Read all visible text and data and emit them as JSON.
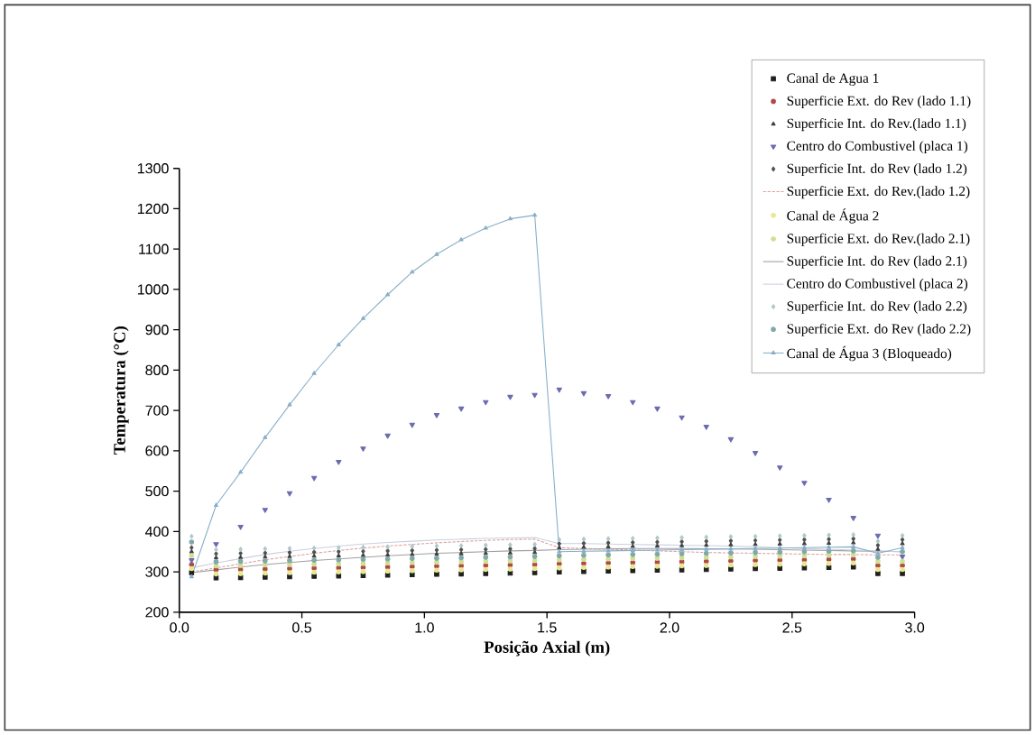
{
  "chart_data": {
    "type": "line",
    "xlabel": "Posição Axial (m)",
    "ylabel": "Temperatura (°C)",
    "xlim": [
      0,
      3.0
    ],
    "ylim": [
      200,
      1300
    ],
    "xticks": [
      {
        "value": 0,
        "label": "0.0"
      },
      {
        "value": 0.5,
        "label": "0.5"
      },
      {
        "value": 1.0,
        "label": "1.0"
      },
      {
        "value": 1.5,
        "label": "1.5"
      },
      {
        "value": 2.0,
        "label": "2.0"
      },
      {
        "value": 2.5,
        "label": "2.5"
      },
      {
        "value": 3.0,
        "label": "3.0"
      }
    ],
    "yticks": [
      200,
      300,
      400,
      500,
      600,
      700,
      800,
      900,
      1000,
      1100,
      1200,
      1300
    ],
    "legend": "top right",
    "x": [
      0.05,
      0.15,
      0.25,
      0.35,
      0.45,
      0.55,
      0.65,
      0.75,
      0.85,
      0.95,
      1.05,
      1.15,
      1.25,
      1.35,
      1.45,
      1.55,
      1.65,
      1.75,
      1.85,
      1.95,
      2.05,
      2.15,
      2.25,
      2.35,
      2.45,
      2.55,
      2.65,
      2.75,
      2.85,
      2.95
    ],
    "series": [
      {
        "name": "Canal de Agua 1",
        "type": "scatter",
        "color": "#202020",
        "marker": "square",
        "values": [
          298,
          285,
          286,
          287,
          288,
          289,
          290,
          291,
          292,
          293,
          294,
          295,
          296,
          297,
          298,
          300,
          301,
          302,
          303,
          304,
          305,
          306,
          307,
          308,
          309,
          310,
          311,
          312,
          296,
          296
        ]
      },
      {
        "name": "Superficie Ext. do Rev (lado 1.1)",
        "type": "scatter",
        "color": "#b04848",
        "marker": "circle",
        "values": [
          318,
          305,
          306,
          307,
          308,
          309,
          310,
          311,
          312,
          313,
          314,
          315,
          316,
          317,
          318,
          320,
          321,
          322,
          323,
          324,
          325,
          326,
          327,
          328,
          329,
          330,
          331,
          332,
          316,
          316
        ]
      },
      {
        "name": "Superficie Int. do Rev.(lado 1.1)",
        "type": "scatter",
        "color": "#404040",
        "marker": "triangle",
        "values": [
          350,
          335,
          336,
          337,
          338,
          339,
          340,
          341,
          342,
          343,
          344,
          345,
          346,
          347,
          348,
          360,
          361,
          362,
          363,
          364,
          365,
          366,
          367,
          368,
          369,
          370,
          371,
          372,
          356,
          370
        ]
      },
      {
        "name": "Centro do Combustivel (placa 1)",
        "type": "scatter",
        "color": "#6b6bb0",
        "marker": "triangle_down",
        "values": [
          329,
          369,
          412,
          454,
          495,
          533,
          573,
          606,
          638,
          665,
          689,
          705,
          721,
          734,
          739,
          752,
          743,
          736,
          721,
          705,
          683,
          660,
          629,
          595,
          559,
          521,
          479,
          434,
          390,
          338
        ]
      },
      {
        "name": "Superficie Int. do Rev (lado 1.2)",
        "type": "scatter",
        "color": "#505050",
        "marker": "diamond",
        "values": [
          360,
          345,
          346,
          347,
          348,
          349,
          350,
          351,
          352,
          353,
          354,
          355,
          356,
          357,
          358,
          370,
          371,
          372,
          373,
          374,
          375,
          376,
          377,
          378,
          379,
          380,
          381,
          382,
          366,
          380
        ]
      },
      {
        "name": "Superficie Ext. do Rev.(lado 1.2)",
        "color": "#e0a0a0",
        "marker": "none",
        "line_style": "dashed",
        "values": [
          300,
          310,
          320,
          330,
          338,
          346,
          353,
          359,
          364,
          368,
          372,
          375,
          378,
          380,
          381,
          360,
          358,
          356,
          354,
          352,
          350,
          348,
          347,
          346,
          345,
          344,
          343,
          343,
          342,
          342
        ]
      },
      {
        "name": "Canal de Água 2",
        "type": "scatter",
        "color": "#e8e890",
        "marker": "circle",
        "values": [
          308,
          295,
          296,
          297,
          298,
          299,
          300,
          301,
          302,
          303,
          304,
          305,
          306,
          307,
          308,
          310,
          311,
          312,
          313,
          314,
          315,
          316,
          317,
          318,
          319,
          320,
          321,
          322,
          306,
          306
        ]
      },
      {
        "name": "Superficie Ext. do Rev.(lado 2.1)",
        "type": "scatter",
        "color": "#d0e090",
        "marker": "circle",
        "values": [
          340,
          315,
          316,
          317,
          318,
          319,
          320,
          321,
          322,
          323,
          324,
          325,
          326,
          327,
          328,
          330,
          331,
          332,
          333,
          334,
          335,
          336,
          337,
          338,
          339,
          340,
          341,
          342,
          326,
          326
        ]
      },
      {
        "name": "Superficie Int. do Rev (lado 2.1)",
        "color": "#a0a0a0",
        "marker": "none",
        "line_style": "solid",
        "values": [
          298,
          305,
          312,
          318,
          323,
          328,
          332,
          336,
          340,
          343,
          346,
          348,
          350,
          352,
          353,
          355,
          356,
          357,
          358,
          358,
          358,
          357,
          357,
          356,
          355,
          354,
          353,
          352,
          351,
          350
        ]
      },
      {
        "name": "Centro do Combustivel (placa 2)",
        "color": "#c8d0e0",
        "marker": "none",
        "line_style": "solid",
        "values": [
          310,
          322,
          333,
          343,
          351,
          358,
          364,
          369,
          373,
          376,
          379,
          381,
          383,
          384,
          385,
          370,
          370,
          369,
          368,
          367,
          366,
          365,
          364,
          362,
          360,
          358,
          356,
          354,
          352,
          350
        ]
      },
      {
        "name": "Superficie Int. do Rev (lado 2.2)",
        "type": "scatter",
        "color": "#b0c8c8",
        "marker": "diamond",
        "values": [
          388,
          355,
          356,
          357,
          358,
          359,
          360,
          361,
          362,
          363,
          364,
          365,
          366,
          367,
          368,
          380,
          381,
          382,
          383,
          384,
          385,
          386,
          387,
          388,
          389,
          390,
          391,
          392,
          376,
          390
        ]
      },
      {
        "name": "Superficie Ext. do Rev (lado 2.2)",
        "type": "scatter",
        "color": "#80a8a8",
        "marker": "circle",
        "values": [
          374,
          325,
          326,
          327,
          328,
          329,
          330,
          331,
          332,
          333,
          334,
          335,
          336,
          337,
          338,
          340,
          341,
          342,
          343,
          344,
          345,
          346,
          347,
          348,
          349,
          350,
          351,
          352,
          336,
          350
        ]
      },
      {
        "name": "Canal de Água 3 (Bloqueado)",
        "color": "#88aec8",
        "marker": "triangle",
        "line_style": "solid",
        "values": [
          288,
          465,
          547,
          633,
          714,
          792,
          863,
          928,
          987,
          1043,
          1087,
          1123,
          1152,
          1175,
          1184,
          350,
          351,
          352,
          353,
          354,
          355,
          356,
          357,
          358,
          359,
          360,
          361,
          362,
          346,
          360
        ]
      }
    ]
  }
}
